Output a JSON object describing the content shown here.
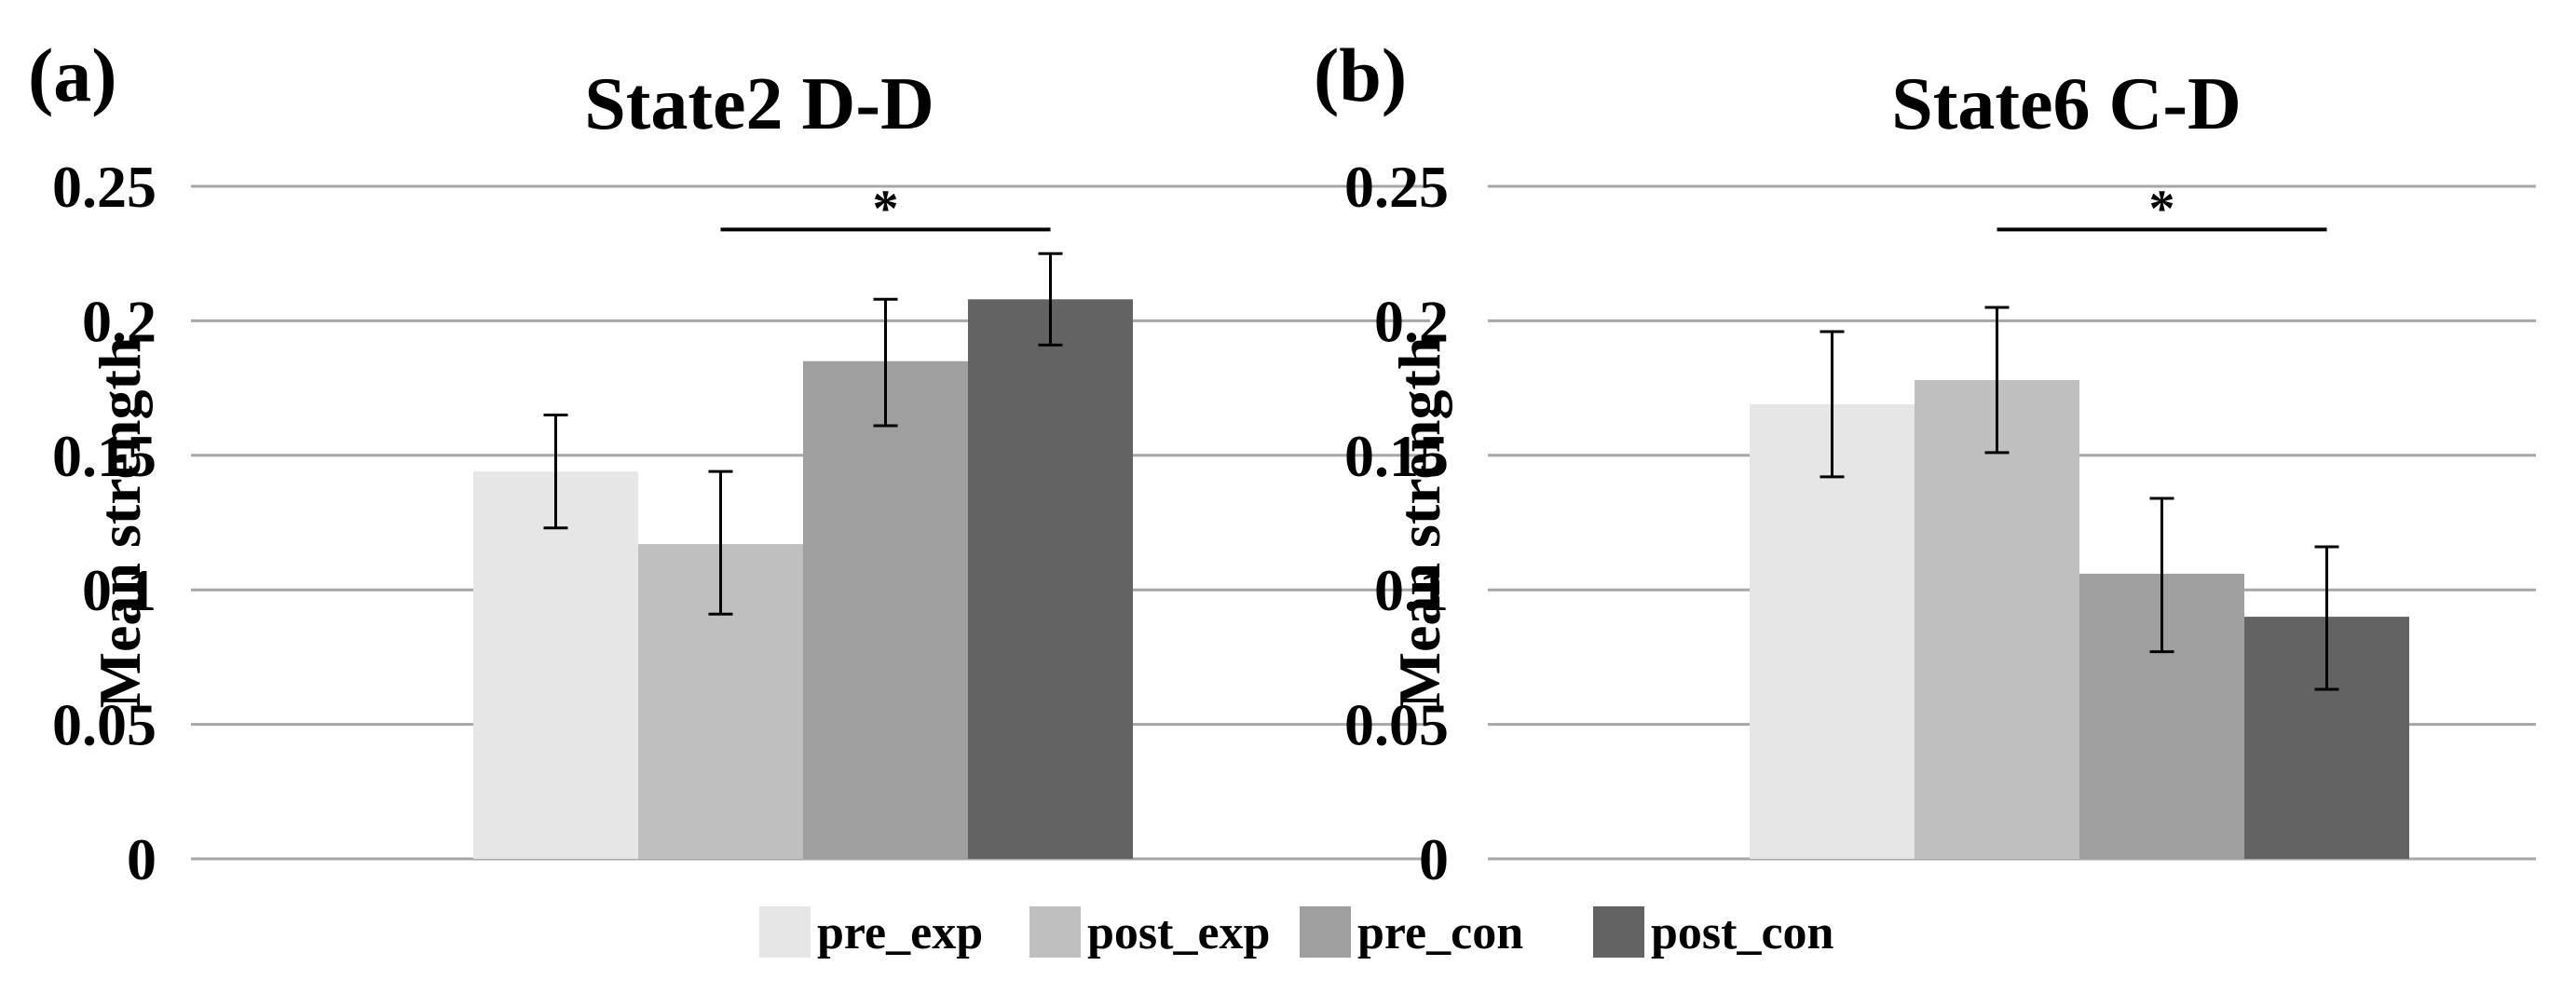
{
  "colors": {
    "pre_exp": "#e6e6e6",
    "post_exp": "#bfbfbf",
    "pre_con": "#9f9f9f",
    "post_con": "#636363",
    "grid": "#a6a6a6",
    "text": "#000000"
  },
  "legend": [
    {
      "key": "pre_exp",
      "label": "pre_exp"
    },
    {
      "key": "post_exp",
      "label": "post_exp"
    },
    {
      "key": "pre_con",
      "label": "pre_con"
    },
    {
      "key": "post_con",
      "label": "post_con"
    }
  ],
  "chart_data": [
    {
      "type": "bar",
      "panel_label": "(a)",
      "title": "State2 D-D",
      "ylabel": "Mean strength",
      "xlabel": "",
      "ylim": [
        0,
        0.25
      ],
      "yticks": [
        0,
        0.05,
        0.1,
        0.15,
        0.2,
        0.25
      ],
      "ytick_labels": [
        "0",
        "0.05",
        "0.1",
        "0.15",
        "0.2",
        "0.25"
      ],
      "grid": true,
      "series": [
        {
          "name": "pre_exp",
          "values": [
            0.144
          ],
          "error": [
            [
              0.123,
              0.165
            ]
          ]
        },
        {
          "name": "post_exp",
          "values": [
            0.117
          ],
          "error": [
            [
              0.091,
              0.144
            ]
          ]
        },
        {
          "name": "pre_con",
          "values": [
            0.185
          ],
          "error": [
            [
              0.161,
              0.208
            ]
          ]
        },
        {
          "name": "post_con",
          "values": [
            0.208
          ],
          "error": [
            [
              0.191,
              0.225
            ]
          ]
        }
      ],
      "significance": {
        "from": "post_exp",
        "to": "post_con",
        "label": "*",
        "level": 0.235
      }
    },
    {
      "type": "bar",
      "panel_label": "(b)",
      "title": "State6 C-D",
      "ylabel": "Mean strength",
      "xlabel": "",
      "ylim": [
        0,
        0.25
      ],
      "yticks": [
        0,
        0.05,
        0.1,
        0.15,
        0.2,
        0.25
      ],
      "ytick_labels": [
        "0",
        "0.05",
        "0.1",
        "0.15",
        "0.2",
        "0.25"
      ],
      "grid": true,
      "series": [
        {
          "name": "pre_exp",
          "values": [
            0.169
          ],
          "error": [
            [
              0.142,
              0.196
            ]
          ]
        },
        {
          "name": "post_exp",
          "values": [
            0.178
          ],
          "error": [
            [
              0.151,
              0.205
            ]
          ]
        },
        {
          "name": "pre_con",
          "values": [
            0.106
          ],
          "error": [
            [
              0.077,
              0.134
            ]
          ]
        },
        {
          "name": "post_con",
          "values": [
            0.09
          ],
          "error": [
            [
              0.063,
              0.116
            ]
          ]
        }
      ],
      "significance": {
        "from": "post_exp",
        "to": "post_con",
        "label": "*",
        "level": 0.235
      }
    }
  ]
}
